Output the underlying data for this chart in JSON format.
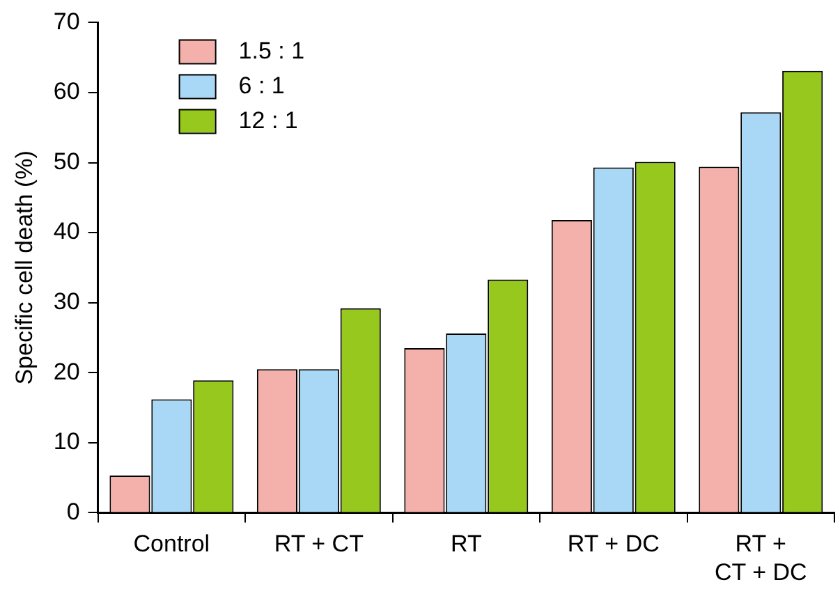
{
  "chart_data": {
    "type": "bar",
    "ylabel": "Specific cell death (%)",
    "categories": [
      "Control",
      "RT + CT",
      "RT",
      "RT + DC",
      "RT +\nCT + DC"
    ],
    "series": [
      {
        "name": "1.5 : 1",
        "color": "#f4b0ab",
        "values": [
          5.3,
          20.5,
          23.5,
          41.8,
          49.4
        ]
      },
      {
        "name": "6 : 1",
        "color": "#a8d8f5",
        "values": [
          16.2,
          20.5,
          25.6,
          49.3,
          57.2
        ]
      },
      {
        "name": "12 : 1",
        "color": "#96c81e",
        "values": [
          18.9,
          29.2,
          33.3,
          50.1,
          63.1
        ]
      }
    ],
    "ylim": [
      0,
      70
    ],
    "yticks": [
      0,
      10,
      20,
      30,
      40,
      50,
      60,
      70
    ],
    "grid": false,
    "legend": "top left"
  }
}
